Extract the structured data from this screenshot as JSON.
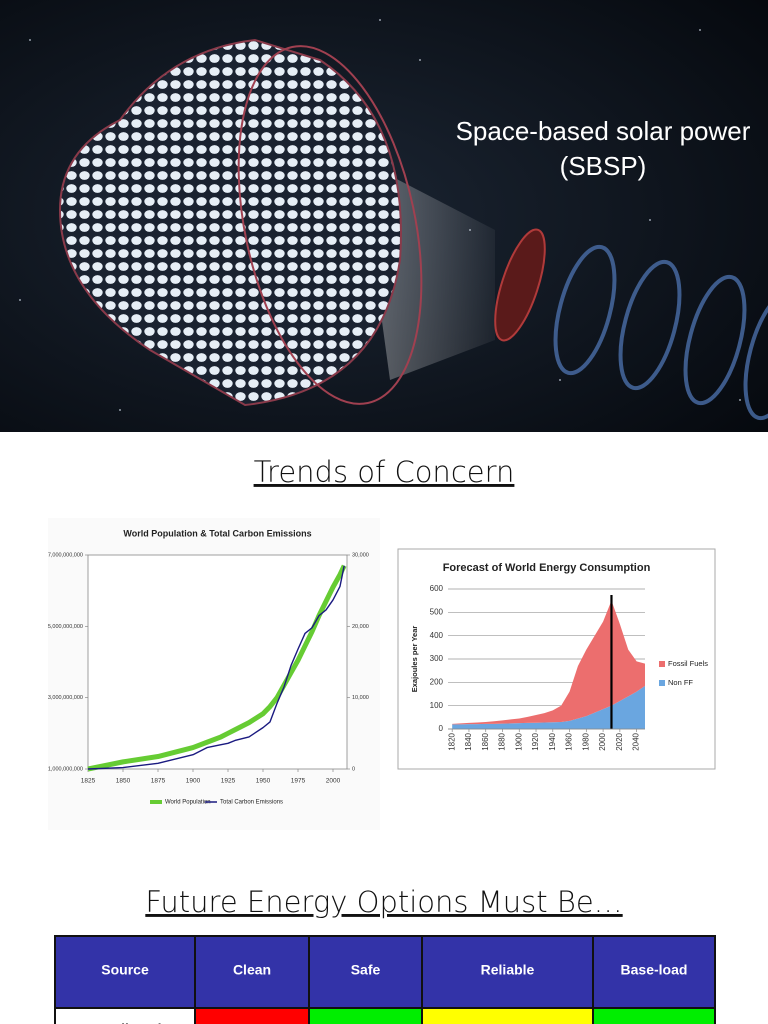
{
  "slides": [
    {
      "title_lines": [
        "Space-based solar power",
        "(SBSP)"
      ]
    },
    {
      "title": "Trends of Concern"
    },
    {
      "title": "Future Energy Options Must Be…"
    }
  ],
  "chart_data": [
    {
      "type": "line",
      "title": "World Population & Total Carbon Emissions",
      "x": [
        1825,
        1850,
        1875,
        1900,
        1910,
        1920,
        1925,
        1930,
        1940,
        1950,
        1955,
        1960,
        1965,
        1970,
        1975,
        1980,
        1985,
        1990,
        1995,
        2000,
        2005,
        2008
      ],
      "series": [
        {
          "name": "World Population",
          "color": "#66cc33",
          "values": [
            1000000000,
            1200000000,
            1350000000,
            1600000000,
            1750000000,
            1900000000,
            2000000000,
            2100000000,
            2300000000,
            2550000000,
            2750000000,
            3000000000,
            3350000000,
            3700000000,
            4050000000,
            4450000000,
            4850000000,
            5300000000,
            5700000000,
            6100000000,
            6450000000,
            6700000000
          ]
        },
        {
          "name": "Total Carbon Emissions",
          "color": "#1a1a80",
          "axis": "y2",
          "values": [
            0,
            200,
            800,
            2000,
            3000,
            3400,
            3600,
            4000,
            4500,
            5800,
            6600,
            9200,
            11500,
            14500,
            16800,
            19000,
            19800,
            21500,
            22300,
            23700,
            25600,
            28500
          ]
        }
      ],
      "xlim": [
        1825,
        2010
      ],
      "xticks": [
        1825,
        1850,
        1875,
        1900,
        1925,
        1950,
        1975,
        2000
      ],
      "ylim": [
        1000000000,
        7000000000
      ],
      "yticks": [
        {
          "value": 1000000000,
          "label": "1,000,000,000"
        },
        {
          "value": 3000000000,
          "label": "3,000,000,000"
        },
        {
          "value": 5000000000,
          "label": "5,000,000,000"
        },
        {
          "value": 7000000000,
          "label": "7,000,000,000"
        }
      ],
      "y2lim": [
        0,
        30000
      ],
      "y2ticks": [
        0,
        {
          "value": 10000,
          "label": "10,000"
        },
        {
          "value": 20000,
          "label": "20,000"
        },
        {
          "value": 30000,
          "label": "30,000"
        }
      ],
      "grid": false
    },
    {
      "type": "area",
      "title": "Forecast of World Energy Consumption",
      "y_label": "Exajoules per Year",
      "stacked": true,
      "x": [
        1820,
        1830,
        1840,
        1850,
        1860,
        1870,
        1880,
        1890,
        1900,
        1910,
        1920,
        1930,
        1940,
        1950,
        1960,
        1970,
        1980,
        1990,
        2000,
        2010,
        2020,
        2030,
        2040,
        2050
      ],
      "series": [
        {
          "name": "Fossil Fuels",
          "color": "#ec6e6e",
          "values": [
            2,
            4,
            5,
            7,
            8,
            11,
            14,
            17,
            20,
            26,
            33,
            40,
            51,
            70,
            125,
            225,
            285,
            330,
            375,
            450,
            330,
            200,
            130,
            95
          ]
        },
        {
          "name": "Non FF",
          "color": "#6aa6e0",
          "values": [
            20,
            20,
            21,
            21,
            22,
            22,
            23,
            24,
            25,
            26,
            27,
            28,
            29,
            30,
            35,
            45,
            55,
            70,
            85,
            100,
            120,
            140,
            160,
            185
          ]
        }
      ],
      "marker_x": 2010,
      "xlim": [
        1815,
        2050
      ],
      "xticks": [
        1820,
        1840,
        1860,
        1880,
        1900,
        1920,
        1940,
        1960,
        1980,
        2000,
        2020,
        2040
      ],
      "ylim": [
        0,
        600
      ],
      "yticks": [
        0,
        100,
        200,
        300,
        400,
        500,
        600
      ],
      "grid": true
    }
  ],
  "table": {
    "header": [
      "Source",
      "Clean",
      "Safe",
      "Reliable",
      "Base-load"
    ],
    "rows": [
      [
        "Fossil Fuel"
      ]
    ]
  }
}
